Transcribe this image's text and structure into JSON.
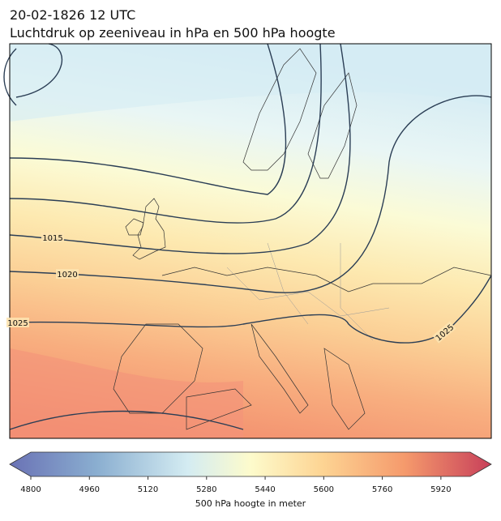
{
  "header": {
    "date": "20-02-1826 12 UTC",
    "title": "Luchtdruk op zeeniveau in hPa en 500 hPa hoogte"
  },
  "map": {
    "isobar_labels": [
      1015,
      1020,
      1025,
      1025
    ]
  },
  "colorbar": {
    "label": "500 hPa hoogte in meter",
    "lim": [
      4800,
      6000
    ],
    "ticks": [
      4800,
      4960,
      5120,
      5280,
      5440,
      5600,
      5760,
      5920
    ]
  }
}
